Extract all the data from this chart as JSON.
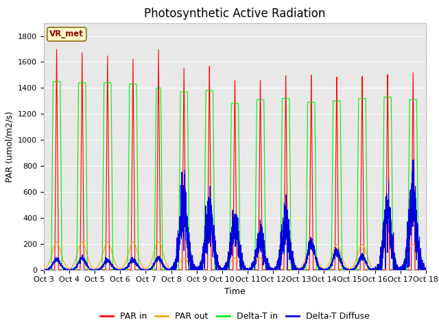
{
  "title": "Photosynthetic Active Radiation",
  "ylabel": "PAR (umol/m2/s)",
  "xlabel": "Time",
  "ylim": [
    0,
    1900
  ],
  "yticks": [
    0,
    200,
    400,
    600,
    800,
    1000,
    1200,
    1400,
    1600,
    1800
  ],
  "xtick_labels": [
    "Oct 3",
    "Oct 4",
    "Oct 5",
    "Oct 6",
    "Oct 7",
    "Oct 8",
    "Oct 9",
    "Oct 10",
    "Oct 11",
    "Oct 12",
    "Oct 13",
    "Oct 14",
    "Oct 15",
    "Oct 16",
    "Oct 17",
    "Oct 18"
  ],
  "color_par_in": "#ff0000",
  "color_par_out": "#ffa500",
  "color_delta_t_in": "#00ee00",
  "color_delta_t_diffuse": "#0000dd",
  "legend_label_1": "PAR in",
  "legend_label_2": "PAR out",
  "legend_label_3": "Delta-T in",
  "legend_label_4": "Delta-T Diffuse",
  "annotation_text": "VR_met",
  "background_color": "#e8e8e8",
  "title_fontsize": 12,
  "axis_fontsize": 9,
  "tick_fontsize": 8
}
